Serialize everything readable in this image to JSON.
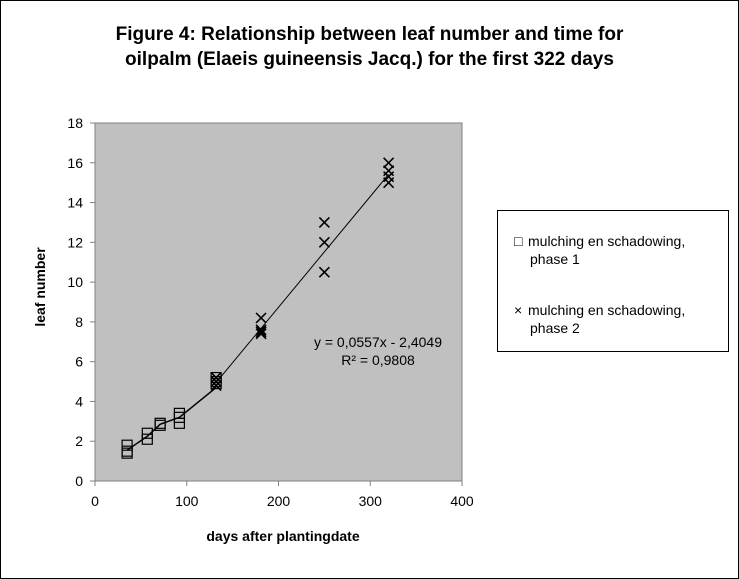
{
  "chart_data": {
    "type": "scatter",
    "title_line1": "Figure 4: Relationship between leaf number and time for",
    "title_line2": "oilpalm (Elaeis guineensis Jacq.) for the first  322 days",
    "xlabel": "days after plantingdate",
    "ylabel": "leaf number",
    "xlim": [
      0,
      400
    ],
    "ylim": [
      0,
      18
    ],
    "x_ticks": [
      0,
      100,
      200,
      300,
      400
    ],
    "y_ticks": [
      0,
      2,
      4,
      6,
      8,
      10,
      12,
      14,
      16,
      18
    ],
    "plot_background": "#c0c0c0",
    "legend_position": "right",
    "series": [
      {
        "name": "mulching en schadowing, phase 1",
        "marker": "square",
        "points": [
          [
            35,
            1.4
          ],
          [
            35,
            1.5
          ],
          [
            35,
            1.8
          ],
          [
            57,
            2.1
          ],
          [
            57,
            2.4
          ],
          [
            71,
            2.8
          ],
          [
            71,
            2.9
          ],
          [
            92,
            2.9
          ],
          [
            92,
            3.2
          ],
          [
            92,
            3.4
          ],
          [
            132,
            4.9
          ],
          [
            132,
            5.0
          ],
          [
            132,
            5.2
          ]
        ],
        "line": [
          [
            35,
            1.55
          ],
          [
            57,
            2.25
          ],
          [
            71,
            2.85
          ],
          [
            92,
            3.2
          ],
          [
            132,
            4.7
          ]
        ]
      },
      {
        "name": "mulching en schadowing, phase 2",
        "marker": "x",
        "points": [
          [
            132,
            4.8
          ],
          [
            132,
            5.0
          ],
          [
            132,
            5.2
          ],
          [
            181,
            7.4
          ],
          [
            181,
            7.5
          ],
          [
            181,
            7.6
          ],
          [
            181,
            8.2
          ],
          [
            250,
            10.5
          ],
          [
            250,
            12.0
          ],
          [
            250,
            13.0
          ],
          [
            320,
            15.0
          ],
          [
            320,
            15.3
          ],
          [
            320,
            15.6
          ],
          [
            320,
            16.0
          ]
        ],
        "trendline": {
          "slope": 0.0557,
          "intercept": -2.4049,
          "x_range": [
            132,
            320
          ],
          "equation": "y = 0,0557x - 2,4049",
          "r2": "R² = 0,9808"
        }
      }
    ],
    "legend": [
      {
        "marker": "□",
        "line1": "mulching en schadowing,",
        "line2": "phase 1"
      },
      {
        "marker": "×",
        "line1": "mulching en schadowing,",
        "line2": "phase 2"
      }
    ]
  }
}
